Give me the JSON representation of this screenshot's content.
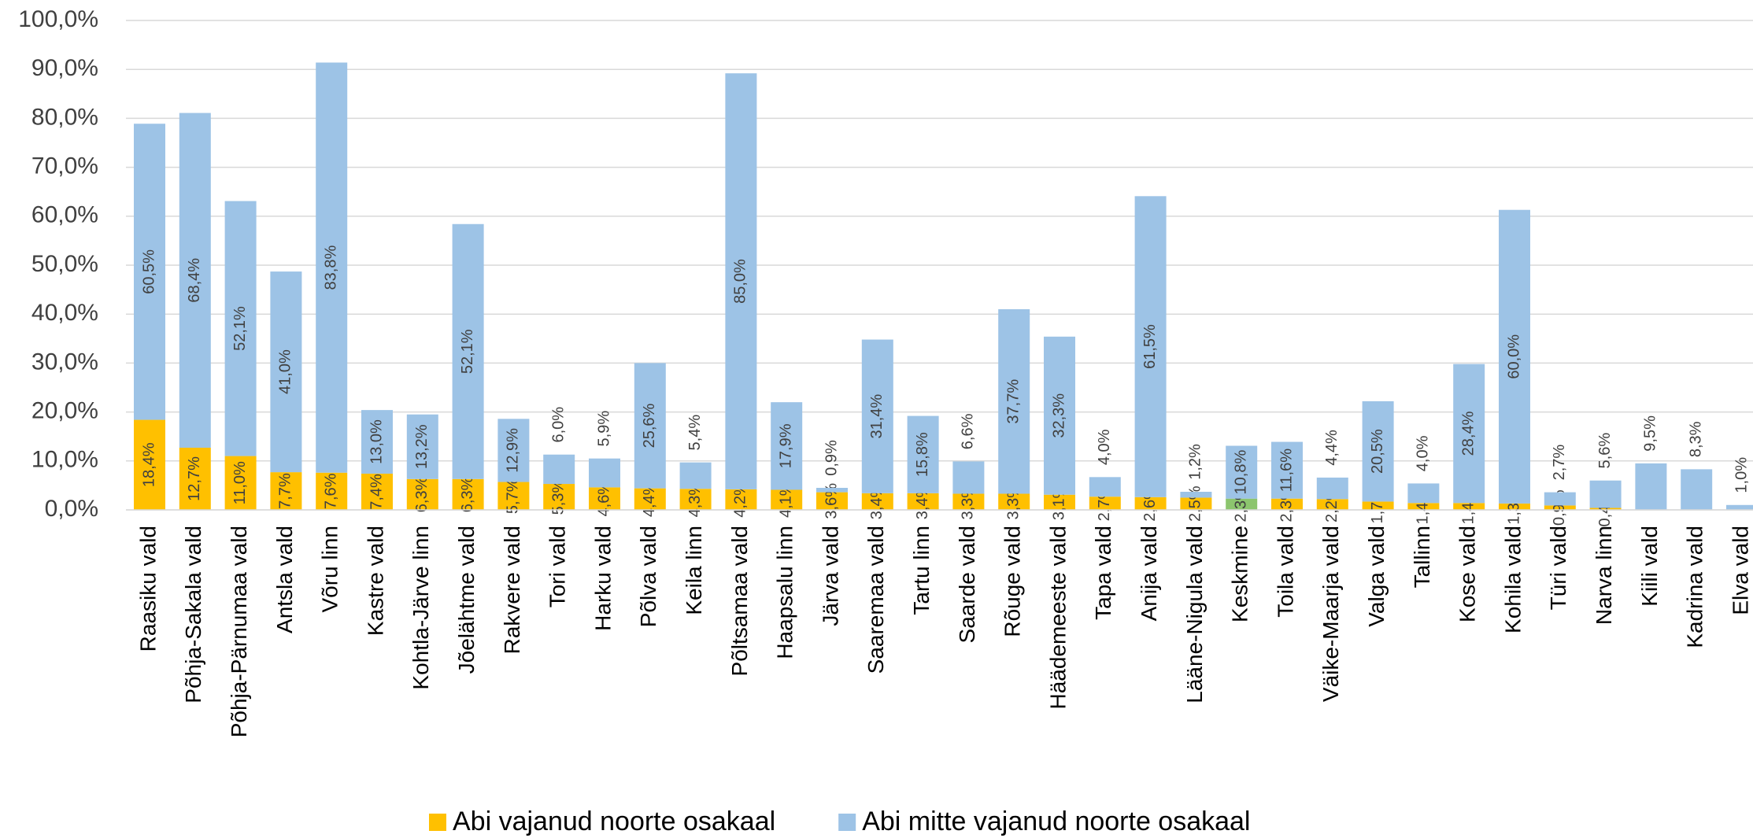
{
  "chart_data": {
    "type": "stacked_bar",
    "categories": [
      "Raasiku vald",
      "Põhja-Sakala vald",
      "Põhja-Pärnumaa vald",
      "Antsla vald",
      "Võru linn",
      "Kastre vald",
      "Kohtla-Järve linn",
      "Jõelähtme vald",
      "Rakvere vald",
      "Tori vald",
      "Harku vald",
      "Põlva vald",
      "Keila linn",
      "Põltsamaa vald",
      "Haapsalu linn",
      "Järva vald",
      "Saaremaa vald",
      "Tartu linn",
      "Saarde vald",
      "Rõuge vald",
      "Häädemeeste vald",
      "Tapa vald",
      "Anija vald",
      "Lääne-Nigula vald",
      "Keskmine",
      "Toila vald",
      "Väike-Maarja vald",
      "Valga vald",
      "Tallinn",
      "Kose vald",
      "Kohila vald",
      "Türi vald",
      "Narva linn",
      "Kiili vald",
      "Kadrina vald",
      "Elva vald"
    ],
    "series": [
      {
        "name": "Abi vajanud noorte osakaal",
        "color": "#ffc000",
        "highlight": {
          "category": "Keskmine",
          "color": "#8cc56e"
        },
        "values": [
          18.4,
          12.7,
          11.0,
          7.7,
          7.6,
          7.4,
          6.3,
          6.3,
          5.7,
          5.3,
          4.6,
          4.4,
          4.3,
          4.2,
          4.1,
          3.6,
          3.4,
          3.4,
          3.3,
          3.3,
          3.1,
          2.7,
          2.6,
          2.5,
          2.3,
          2.3,
          2.2,
          1.7,
          1.4,
          1.4,
          1.3,
          0.9,
          0.4,
          null,
          null,
          null
        ],
        "value_labels": [
          "18,4%",
          "12,7%",
          "11,0%",
          "7,7%",
          "7,6%",
          "7,4%",
          "6,3%",
          "6,3%",
          "5,7%",
          "5,3%",
          "4,6%",
          "4,4%",
          "4,3%",
          "4,2%",
          "4,1%",
          "3,6%",
          "3,4%",
          "3,4%",
          "3,3%",
          "3,3%",
          "3,1%",
          "2,7%",
          "2,6%",
          "2,5%",
          "2,3%",
          "2,3%",
          "2,2%",
          "1,7%",
          "1,4%",
          "1,4%",
          "1,3%",
          "0,9%",
          "0,4%",
          null,
          null,
          null
        ]
      },
      {
        "name": "Abi mitte vajanud noorte osakaal",
        "color": "#9dc3e6",
        "values": [
          60.5,
          68.4,
          52.1,
          41.0,
          83.8,
          13.0,
          13.2,
          52.1,
          12.9,
          6.0,
          5.9,
          25.6,
          5.4,
          85.0,
          17.9,
          0.9,
          31.4,
          15.8,
          6.6,
          37.7,
          32.3,
          4.0,
          61.5,
          1.2,
          10.8,
          11.6,
          4.4,
          20.5,
          4.0,
          28.4,
          60.0,
          2.7,
          5.6,
          9.5,
          8.3,
          1.0
        ],
        "value_labels": [
          "60,5%",
          "68,4%",
          "52,1%",
          "41,0%",
          "83,8%",
          "13,0%",
          "13,2%",
          "52,1%",
          "12,9%",
          "6,0%",
          "5,9%",
          "25,6%",
          "5,4%",
          "85,0%",
          "17,9%",
          "0,9%",
          "31,4%",
          "15,8%",
          "6,6%",
          "37,7%",
          "32,3%",
          "4,0%",
          "61,5%",
          "1,2%",
          "10,8%",
          "11,6%",
          "4,4%",
          "20,5%",
          "4,0%",
          "28,4%",
          "60,0%",
          "2,7%",
          "5,6%",
          "9,5%",
          "8,3%",
          "1,0%"
        ]
      }
    ],
    "ylim": [
      0,
      100
    ],
    "yticks": [
      {
        "value": 0,
        "label": "0,0%"
      },
      {
        "value": 10,
        "label": "10,0%"
      },
      {
        "value": 20,
        "label": "20,0%"
      },
      {
        "value": 30,
        "label": "30,0%"
      },
      {
        "value": 40,
        "label": "40,0%"
      },
      {
        "value": 50,
        "label": "50,0%"
      },
      {
        "value": 60,
        "label": "60,0%"
      },
      {
        "value": 70,
        "label": "70,0%"
      },
      {
        "value": 80,
        "label": "80,0%"
      },
      {
        "value": 90,
        "label": "90,0%"
      },
      {
        "value": 100,
        "label": "100,0%"
      }
    ],
    "grid": true,
    "legend": "bottom"
  }
}
